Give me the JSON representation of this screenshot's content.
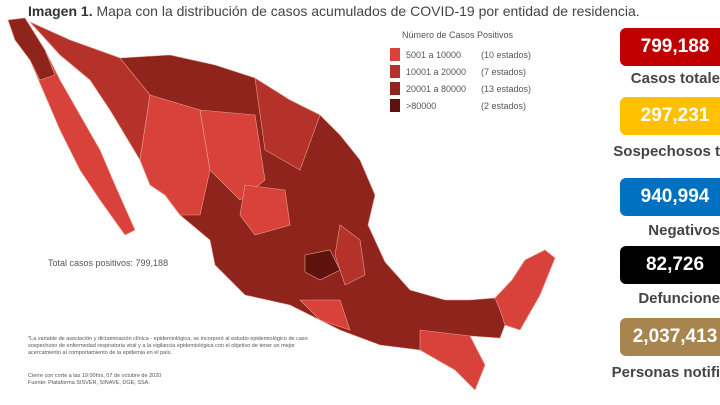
{
  "header": {
    "prefix": "Imagen 1.",
    "title": "Mapa con la distribución de casos acumulados de COVID-19 por entidad de residencia."
  },
  "legend": {
    "title": "Número de Casos Positivos",
    "items": [
      {
        "range": "5001 a 10000",
        "count": "(10 estados)",
        "color": "#d8423a"
      },
      {
        "range": "10001 a 20000",
        "count": "(7 estados)",
        "color": "#b5322a"
      },
      {
        "range": "20001 a 80000",
        "count": "(13 estados)",
        "color": "#8f241d"
      },
      {
        "range": ">80000",
        "count": "(2 estados)",
        "color": "#5e120d"
      }
    ]
  },
  "total": "Total casos positivos: 799,188",
  "footnote": "*La variable de asociación y dictaminación clínica - epidemiológica, se incorporó al estudio epidemiológico de caso sospechoso de enfermedad respiratoria viral y a la vigilancia epidemiológica con el objetivo de tener un mejor acercamiento al comportamiento de la epidemia en el país.",
  "closing": "Cierre con corte a las 19:00hrs, 07 de octubre de 2020",
  "source": "Fuente: Plataforma SISVER, SINAVE, DGE, SSA.",
  "stats": [
    {
      "value": "799,188",
      "label": "Casos totale",
      "color": "#c00000"
    },
    {
      "value": "297,231",
      "label": "Sospechosos t",
      "color": "#ffc000"
    },
    {
      "value": "940,994",
      "label": "Negativos",
      "color": "#0070c0"
    },
    {
      "value": "82,726",
      "label": "Defuncione",
      "color": "#000000"
    },
    {
      "value": "2,037,413",
      "label": "Personas notifi",
      "color": "#a8844f"
    }
  ]
}
